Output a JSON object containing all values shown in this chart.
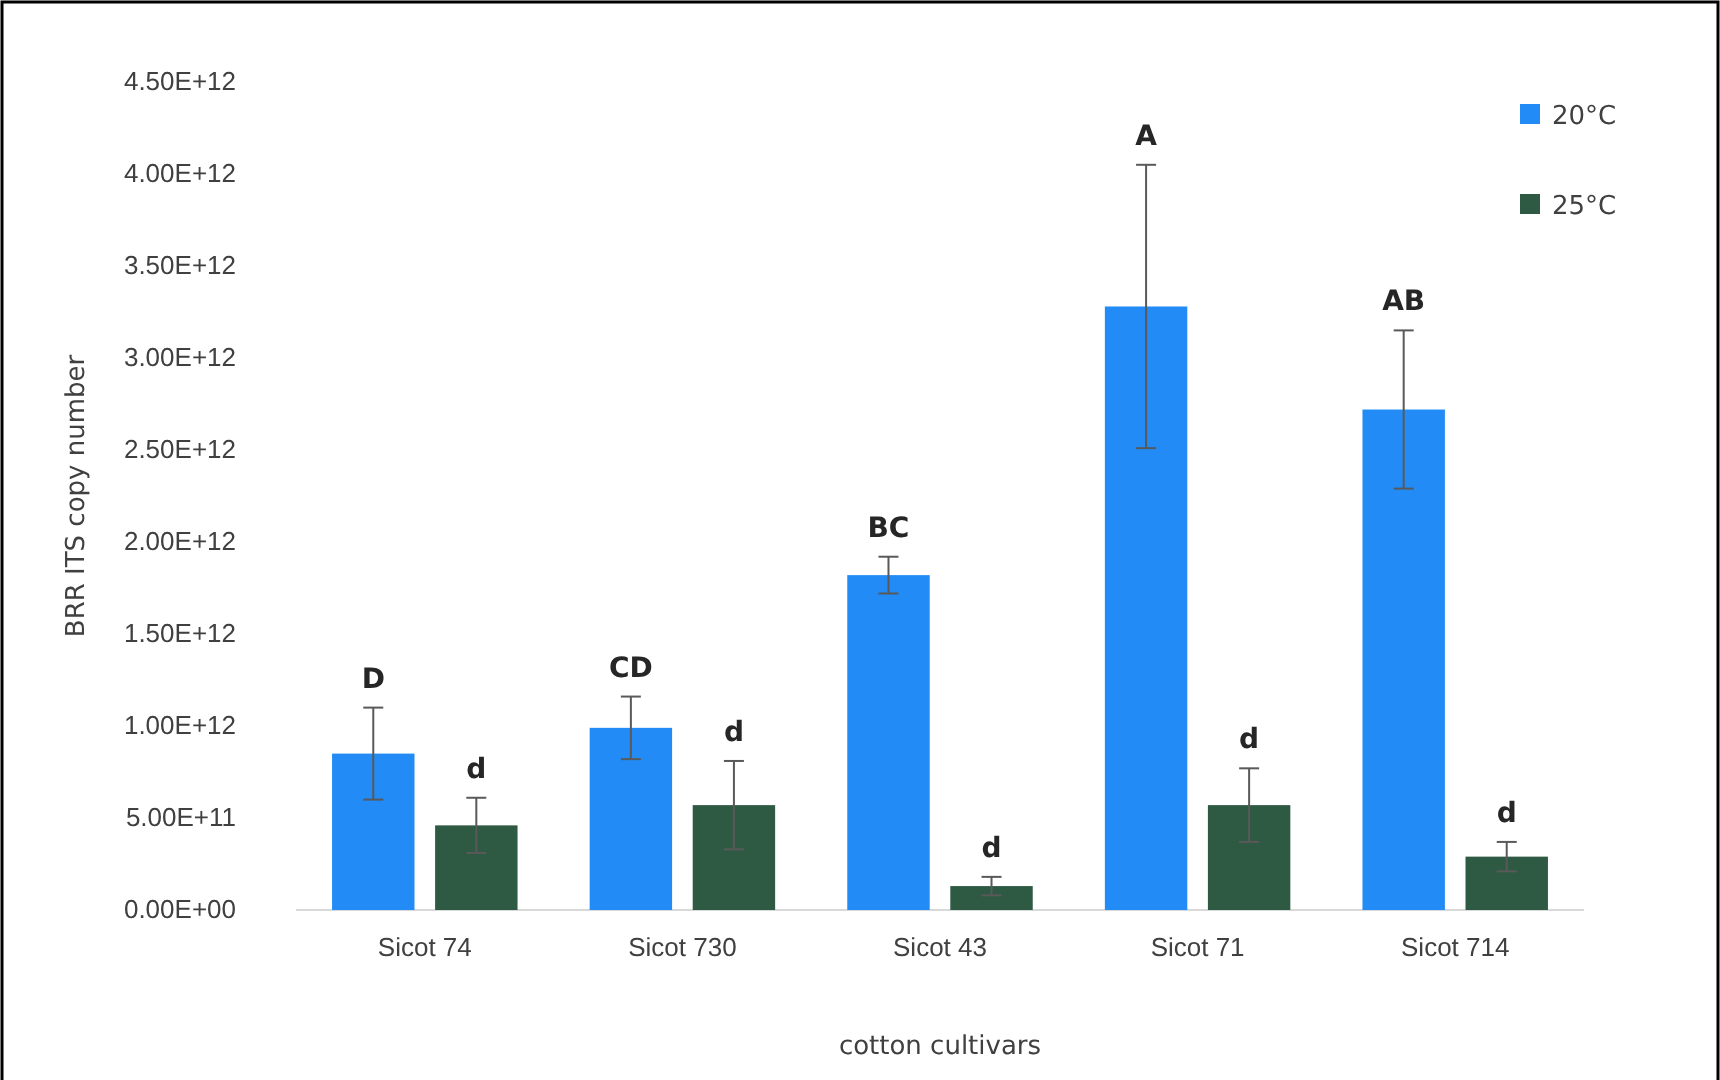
{
  "chart_data": {
    "type": "bar",
    "xlabel": "cotton cultivars",
    "ylabel": "BRR ITS copy number",
    "categories": [
      "Sicot 74",
      "Sicot 730",
      "Sicot 43",
      "Sicot 71",
      "Sicot 714"
    ],
    "series": [
      {
        "name": "20°C",
        "color": "#228bf5",
        "values": [
          850000000000.0,
          990000000000.0,
          1820000000000.0,
          3280000000000.0,
          2720000000000.0
        ],
        "errors": [
          250000000000.0,
          170000000000.0,
          100000000000.0,
          770000000000.0,
          430000000000.0
        ]
      },
      {
        "name": "25°C",
        "color": "#2e5a44",
        "values": [
          460000000000.0,
          570000000000.0,
          130000000000.0,
          570000000000.0,
          290000000000.0
        ],
        "errors": [
          150000000000.0,
          240000000000.0,
          50000000000.0,
          200000000000.0,
          80000000000.0
        ]
      }
    ],
    "ylim": [
      0,
      4500000000000.0
    ],
    "yticks": [
      {
        "value": 0,
        "label": "0.00E+00"
      },
      {
        "value": 500000000000.0,
        "label": "5.00E+11"
      },
      {
        "value": 1000000000000.0,
        "label": "1.00E+12"
      },
      {
        "value": 1500000000000.0,
        "label": "1.50E+12"
      },
      {
        "value": 2000000000000.0,
        "label": "2.00E+12"
      },
      {
        "value": 2500000000000.0,
        "label": "2.50E+12"
      },
      {
        "value": 3000000000000.0,
        "label": "3.00E+12"
      },
      {
        "value": 3500000000000.0,
        "label": "3.50E+12"
      },
      {
        "value": 4000000000000.0,
        "label": "4.00E+12"
      },
      {
        "value": 4500000000000.0,
        "label": "4.50E+12"
      }
    ],
    "grid": false,
    "legend": "top right",
    "annotations": [
      "D",
      "d",
      "CD",
      "d",
      "BC",
      "d",
      "A",
      "d",
      "AB",
      "d"
    ]
  }
}
